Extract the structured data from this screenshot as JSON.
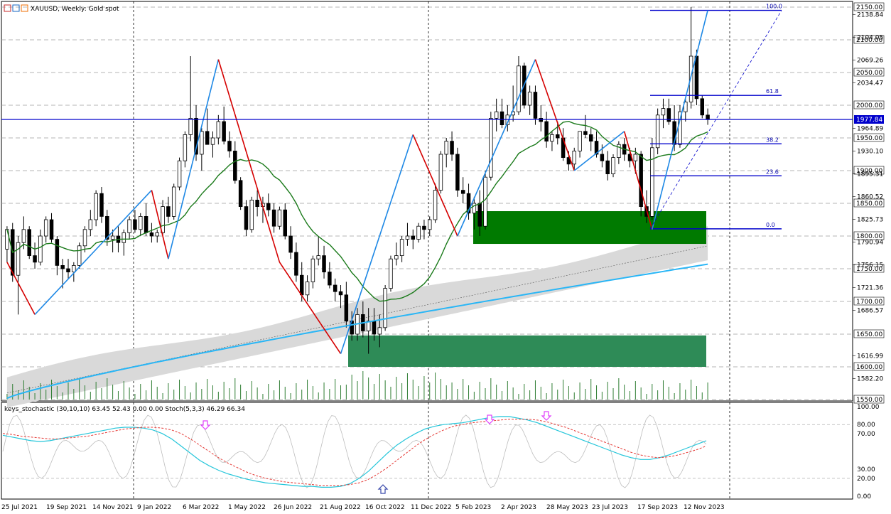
{
  "header": {
    "symbol": "XAUUSD",
    "timeframe": "Weekly",
    "description": "Gold spot",
    "title_text": "XAUUSD, Weekly:  Gold spot"
  },
  "indicator": {
    "title_text": "keys_stochastic (30,10,10) 63.45 52.43 0.00 0.00 Stoch(5,3,3) 46.29 66.34"
  },
  "current_price": "1977.84",
  "colors": {
    "bull": "#000000",
    "bear": "#000000",
    "zigzag_up": "#1e88e5",
    "zigzag_down": "#d50000",
    "ma_green": "#1a7a1a",
    "ma_cyan": "#29b6f6",
    "zone_green": "#007a00",
    "zone_green2": "#2e8b57",
    "band_gray": "#d9d9d9",
    "fib_line": "#0000cc",
    "stoch_main": "#26c6da",
    "stoch_signal": "#e53935"
  },
  "chart_data": {
    "type": "candlestick",
    "price_axis": {
      "min": 1550,
      "max": 2160,
      "grid_labels": [
        "2150.00",
        "2100.00",
        "2050.00",
        "2000.00",
        "1950.00",
        "1900.00",
        "1850.00",
        "1800.00",
        "1750.00",
        "1700.00",
        "1650.00",
        "1600.00",
        "1550.00"
      ],
      "grid_values": [
        2150,
        2100,
        2050,
        2000,
        1950,
        1900,
        1850,
        1800,
        1750,
        1700,
        1650,
        1600,
        1550
      ],
      "minor_labels": [
        "2138.84",
        "2104.05",
        "2069.26",
        "2034.47",
        "1964.89",
        "1930.10",
        "1895.31",
        "1860.52",
        "1825.73",
        "1790.94",
        "1756.15",
        "1721.36",
        "1686.57",
        "1616.99",
        "1582.20"
      ],
      "minor_values": [
        2138.84,
        2104.05,
        2069.26,
        2034.47,
        1964.89,
        1930.1,
        1895.31,
        1860.52,
        1825.73,
        1790.94,
        1756.15,
        1721.36,
        1686.57,
        1616.99,
        1582.2
      ]
    },
    "time_axis": {
      "labels": [
        "25 Jul 2021",
        "19 Sep 2021",
        "14 Nov 2021",
        "9 Jan 2022",
        "6 Mar 2022",
        "1 May 2022",
        "26 Jun 2022",
        "21 Aug 2022",
        "16 Oct 2022",
        "11 Dec 2022",
        "5 Feb 2023",
        "2 Apr 2023",
        "28 May 2023",
        "23 Jul 2023",
        "17 Sep 2023",
        "12 Nov 2023"
      ]
    },
    "fibonacci": {
      "levels": [
        {
          "label": "100.0",
          "value": 2145
        },
        {
          "label": "61.8",
          "value": 2015
        },
        {
          "label": "38.2",
          "value": 1941
        },
        {
          "label": "23.6",
          "value": 1892
        },
        {
          "label": "0.0",
          "value": 1811
        }
      ]
    },
    "zones": [
      {
        "from": 1788,
        "to": 1838
      },
      {
        "from": 1600,
        "to": 1648
      }
    ],
    "stochastic_axis": {
      "labels": [
        "100.00",
        "80.00",
        "70.00",
        "30.00",
        "20.00",
        "0.00"
      ],
      "values": [
        100,
        80,
        70,
        30,
        20,
        0
      ]
    },
    "candles": [
      [
        1780,
        1815,
        1760,
        1810
      ],
      [
        1810,
        1820,
        1730,
        1740
      ],
      [
        1740,
        1800,
        1680,
        1790
      ],
      [
        1790,
        1830,
        1780,
        1810
      ],
      [
        1810,
        1815,
        1765,
        1770
      ],
      [
        1770,
        1790,
        1750,
        1760
      ],
      [
        1760,
        1810,
        1755,
        1800
      ],
      [
        1800,
        1830,
        1790,
        1825
      ],
      [
        1825,
        1835,
        1790,
        1795
      ],
      [
        1795,
        1800,
        1740,
        1755
      ],
      [
        1755,
        1765,
        1720,
        1750
      ],
      [
        1750,
        1765,
        1735,
        1745
      ],
      [
        1745,
        1760,
        1730,
        1755
      ],
      [
        1755,
        1790,
        1750,
        1785
      ],
      [
        1785,
        1815,
        1775,
        1810
      ],
      [
        1810,
        1840,
        1800,
        1825
      ],
      [
        1825,
        1870,
        1815,
        1865
      ],
      [
        1865,
        1875,
        1820,
        1830
      ],
      [
        1830,
        1840,
        1785,
        1795
      ],
      [
        1795,
        1810,
        1775,
        1800
      ],
      [
        1800,
        1815,
        1775,
        1790
      ],
      [
        1790,
        1810,
        1770,
        1805
      ],
      [
        1805,
        1830,
        1795,
        1825
      ],
      [
        1825,
        1840,
        1805,
        1810
      ],
      [
        1810,
        1835,
        1800,
        1830
      ],
      [
        1830,
        1850,
        1800,
        1805
      ],
      [
        1805,
        1820,
        1790,
        1800
      ],
      [
        1800,
        1810,
        1790,
        1805
      ],
      [
        1805,
        1855,
        1800,
        1845
      ],
      [
        1845,
        1860,
        1820,
        1830
      ],
      [
        1830,
        1880,
        1825,
        1875
      ],
      [
        1875,
        1920,
        1870,
        1915
      ],
      [
        1915,
        1960,
        1905,
        1955
      ],
      [
        1955,
        2075,
        1945,
        1980
      ],
      [
        1980,
        2000,
        1915,
        1925
      ],
      [
        1925,
        1965,
        1900,
        1960
      ],
      [
        1960,
        1995,
        1945,
        1940
      ],
      [
        1940,
        1960,
        1920,
        1950
      ],
      [
        1950,
        1985,
        1940,
        1975
      ],
      [
        1975,
        1998,
        1940,
        1945
      ],
      [
        1945,
        1960,
        1920,
        1930
      ],
      [
        1930,
        1945,
        1880,
        1885
      ],
      [
        1885,
        1890,
        1840,
        1845
      ],
      [
        1845,
        1855,
        1800,
        1810
      ],
      [
        1810,
        1860,
        1805,
        1855
      ],
      [
        1855,
        1870,
        1830,
        1845
      ],
      [
        1845,
        1860,
        1820,
        1850
      ],
      [
        1850,
        1865,
        1830,
        1840
      ],
      [
        1840,
        1850,
        1805,
        1815
      ],
      [
        1815,
        1845,
        1810,
        1840
      ],
      [
        1840,
        1850,
        1795,
        1800
      ],
      [
        1800,
        1815,
        1765,
        1775
      ],
      [
        1775,
        1790,
        1730,
        1740
      ],
      [
        1740,
        1760,
        1700,
        1710
      ],
      [
        1710,
        1740,
        1700,
        1730
      ],
      [
        1730,
        1770,
        1720,
        1765
      ],
      [
        1765,
        1800,
        1755,
        1770
      ],
      [
        1770,
        1785,
        1735,
        1745
      ],
      [
        1745,
        1760,
        1720,
        1725
      ],
      [
        1725,
        1735,
        1700,
        1715
      ],
      [
        1715,
        1725,
        1690,
        1710
      ],
      [
        1710,
        1730,
        1660,
        1670
      ],
      [
        1670,
        1685,
        1640,
        1650
      ],
      [
        1650,
        1690,
        1640,
        1680
      ],
      [
        1680,
        1700,
        1645,
        1655
      ],
      [
        1655,
        1690,
        1620,
        1670
      ],
      [
        1670,
        1690,
        1640,
        1650
      ],
      [
        1650,
        1680,
        1630,
        1660
      ],
      [
        1660,
        1725,
        1655,
        1720
      ],
      [
        1720,
        1770,
        1715,
        1765
      ],
      [
        1765,
        1790,
        1755,
        1770
      ],
      [
        1770,
        1800,
        1760,
        1795
      ],
      [
        1795,
        1820,
        1785,
        1800
      ],
      [
        1800,
        1810,
        1780,
        1795
      ],
      [
        1795,
        1820,
        1790,
        1815
      ],
      [
        1815,
        1825,
        1795,
        1810
      ],
      [
        1810,
        1830,
        1800,
        1825
      ],
      [
        1825,
        1880,
        1820,
        1870
      ],
      [
        1870,
        1930,
        1865,
        1925
      ],
      [
        1925,
        1950,
        1905,
        1945
      ],
      [
        1945,
        1960,
        1915,
        1925
      ],
      [
        1925,
        1935,
        1860,
        1870
      ],
      [
        1870,
        1890,
        1850,
        1865
      ],
      [
        1865,
        1880,
        1825,
        1835
      ],
      [
        1835,
        1860,
        1810,
        1850
      ],
      [
        1850,
        1870,
        1800,
        1815
      ],
      [
        1815,
        1900,
        1810,
        1890
      ],
      [
        1890,
        1990,
        1885,
        1980
      ],
      [
        1980,
        2010,
        1960,
        1990
      ],
      [
        1990,
        2010,
        1965,
        1970
      ],
      [
        1970,
        2000,
        1960,
        1985
      ],
      [
        1985,
        2030,
        1975,
        1990
      ],
      [
        1990,
        2075,
        1985,
        2060
      ],
      [
        2060,
        2065,
        1995,
        2000
      ],
      [
        2000,
        2030,
        1985,
        2020
      ],
      [
        2020,
        2030,
        1970,
        1980
      ],
      [
        1980,
        2000,
        1960,
        1975
      ],
      [
        1975,
        1990,
        1935,
        1945
      ],
      [
        1945,
        1960,
        1930,
        1955
      ],
      [
        1955,
        1975,
        1940,
        1950
      ],
      [
        1950,
        1965,
        1915,
        1920
      ],
      [
        1920,
        1930,
        1900,
        1910
      ],
      [
        1910,
        1935,
        1900,
        1930
      ],
      [
        1930,
        1960,
        1920,
        1960
      ],
      [
        1960,
        1985,
        1950,
        1955
      ],
      [
        1955,
        1965,
        1930,
        1945
      ],
      [
        1945,
        1960,
        1920,
        1925
      ],
      [
        1925,
        1940,
        1905,
        1915
      ],
      [
        1915,
        1930,
        1885,
        1895
      ],
      [
        1895,
        1925,
        1890,
        1920
      ],
      [
        1920,
        1945,
        1910,
        1940
      ],
      [
        1940,
        1950,
        1915,
        1925
      ],
      [
        1925,
        1935,
        1905,
        1915
      ],
      [
        1915,
        1935,
        1895,
        1925
      ],
      [
        1925,
        1930,
        1830,
        1845
      ],
      [
        1845,
        1870,
        1820,
        1830
      ],
      [
        1830,
        1950,
        1825,
        1935
      ],
      [
        1935,
        1995,
        1925,
        1985
      ],
      [
        1985,
        2010,
        1965,
        1995
      ],
      [
        1995,
        2010,
        1970,
        1975
      ],
      [
        1975,
        2000,
        1930,
        1940
      ],
      [
        1940,
        2000,
        1935,
        1990
      ],
      [
        1990,
        2010,
        1975,
        2005
      ],
      [
        2005,
        2150,
        1995,
        2075
      ],
      [
        2075,
        2085,
        2000,
        2010
      ],
      [
        2010,
        2015,
        1980,
        1985
      ],
      [
        1985,
        1995,
        1970,
        1978
      ]
    ],
    "stoch_main": [
      68,
      66,
      64,
      62,
      61,
      62,
      64,
      66,
      68,
      70,
      72,
      74,
      76,
      77,
      77,
      76,
      74,
      70,
      64,
      56,
      48,
      40,
      34,
      29,
      25,
      22,
      19,
      17,
      15,
      14,
      13,
      12,
      11,
      11,
      10,
      10,
      11,
      14,
      20,
      28,
      38,
      48,
      57,
      64,
      70,
      75,
      78,
      80,
      81,
      82,
      84,
      86,
      88,
      89,
      89,
      87,
      85,
      82,
      78,
      74,
      70,
      66,
      62,
      58,
      54,
      50,
      46,
      43,
      41,
      41,
      43,
      46,
      50,
      54,
      58,
      62
    ],
    "stoch_signal": [
      70,
      69,
      67,
      66,
      65,
      64,
      64,
      65,
      66,
      67,
      69,
      71,
      73,
      75,
      76,
      77,
      77,
      76,
      74,
      70,
      64,
      57,
      50,
      43,
      37,
      32,
      27,
      23,
      20,
      18,
      16,
      15,
      14,
      13,
      12,
      12,
      12,
      13,
      15,
      19,
      25,
      32,
      40,
      48,
      56,
      63,
      69,
      74,
      78,
      80,
      82,
      83,
      84,
      85,
      86,
      86,
      86,
      85,
      83,
      80,
      77,
      73,
      69,
      65,
      61,
      57,
      53,
      49,
      46,
      44,
      43,
      44,
      46,
      49,
      52,
      56
    ]
  }
}
